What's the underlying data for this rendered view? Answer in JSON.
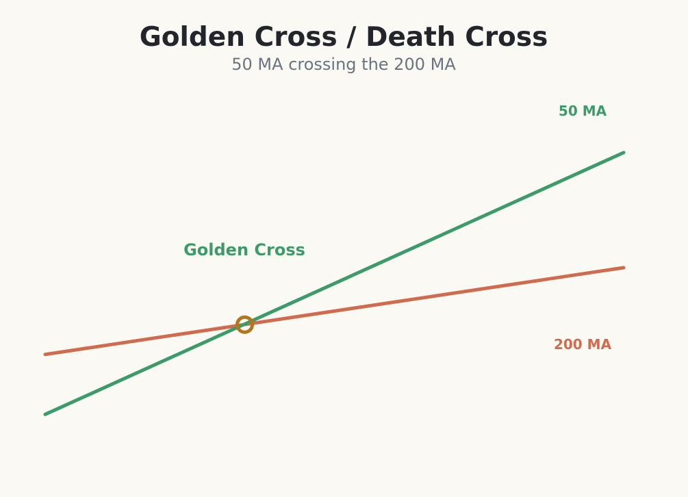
{
  "chart_data": {
    "type": "line",
    "title": "Golden Cross / Death Cross",
    "subtitle": "50 MA crossing the 200 MA",
    "xlabel": "",
    "ylabel": "",
    "grid": false,
    "axes_visible": false,
    "xlim": [
      0,
      100
    ],
    "ylim": [
      0,
      100
    ],
    "series": [
      {
        "name": "50 MA",
        "color": "#3d9b69",
        "points": [
          [
            0,
            16.3
          ],
          [
            100,
            86.6
          ]
        ]
      },
      {
        "name": "200 MA",
        "color": "#d06b4e",
        "points": [
          [
            0,
            32.4
          ],
          [
            100,
            55.7
          ]
        ]
      }
    ],
    "annotations": [
      {
        "text": "Golden Cross",
        "color": "#3d9b69",
        "marker_color": "#b3761c",
        "point": [
          34.5,
          40.4
        ]
      }
    ]
  },
  "colors": {
    "background": "#faf9f4",
    "title": "#22252b",
    "subtitle": "#6b7280"
  }
}
